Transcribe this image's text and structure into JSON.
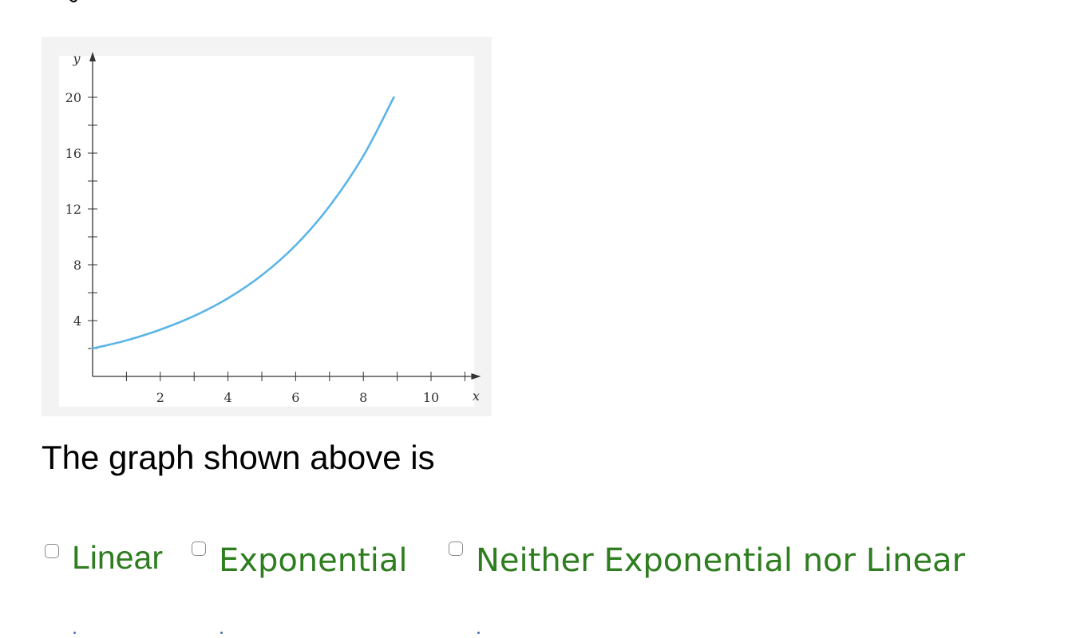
{
  "question": {
    "text": "The graph shown above is"
  },
  "options": [
    {
      "label": "Linear",
      "checked": false
    },
    {
      "label": "Exponential",
      "checked": false
    },
    {
      "label": "Neither Exponential nor Linear",
      "checked": false
    }
  ],
  "colors": {
    "option_text": "#2e7d1f",
    "curve": "#5ab4e8",
    "axis": "#333333",
    "chart_background": "#f3f3f3"
  },
  "chart_data": {
    "type": "line",
    "xlabel": "x",
    "ylabel": "y",
    "xlim": [
      0,
      11
    ],
    "ylim": [
      0,
      22
    ],
    "x_ticks": [
      1,
      2,
      3,
      4,
      5,
      6,
      7,
      8,
      9,
      10,
      11
    ],
    "x_tick_labels": [
      "2",
      "4",
      "6",
      "8",
      "10"
    ],
    "x_tick_label_values": [
      2,
      4,
      6,
      8,
      10
    ],
    "y_ticks": [
      2,
      4,
      6,
      8,
      10,
      12,
      14,
      16,
      18,
      20
    ],
    "y_tick_labels": [
      "4",
      "8",
      "12",
      "16",
      "20"
    ],
    "y_tick_label_values": [
      4,
      8,
      12,
      16,
      20
    ],
    "grid": false,
    "series": [
      {
        "x": [
          0,
          1,
          2,
          3,
          4,
          5,
          6,
          7,
          8,
          8.9
        ],
        "y": [
          2.0,
          2.58,
          3.35,
          4.33,
          5.6,
          7.25,
          9.4,
          12.2,
          15.8,
          20.0
        ]
      }
    ]
  }
}
